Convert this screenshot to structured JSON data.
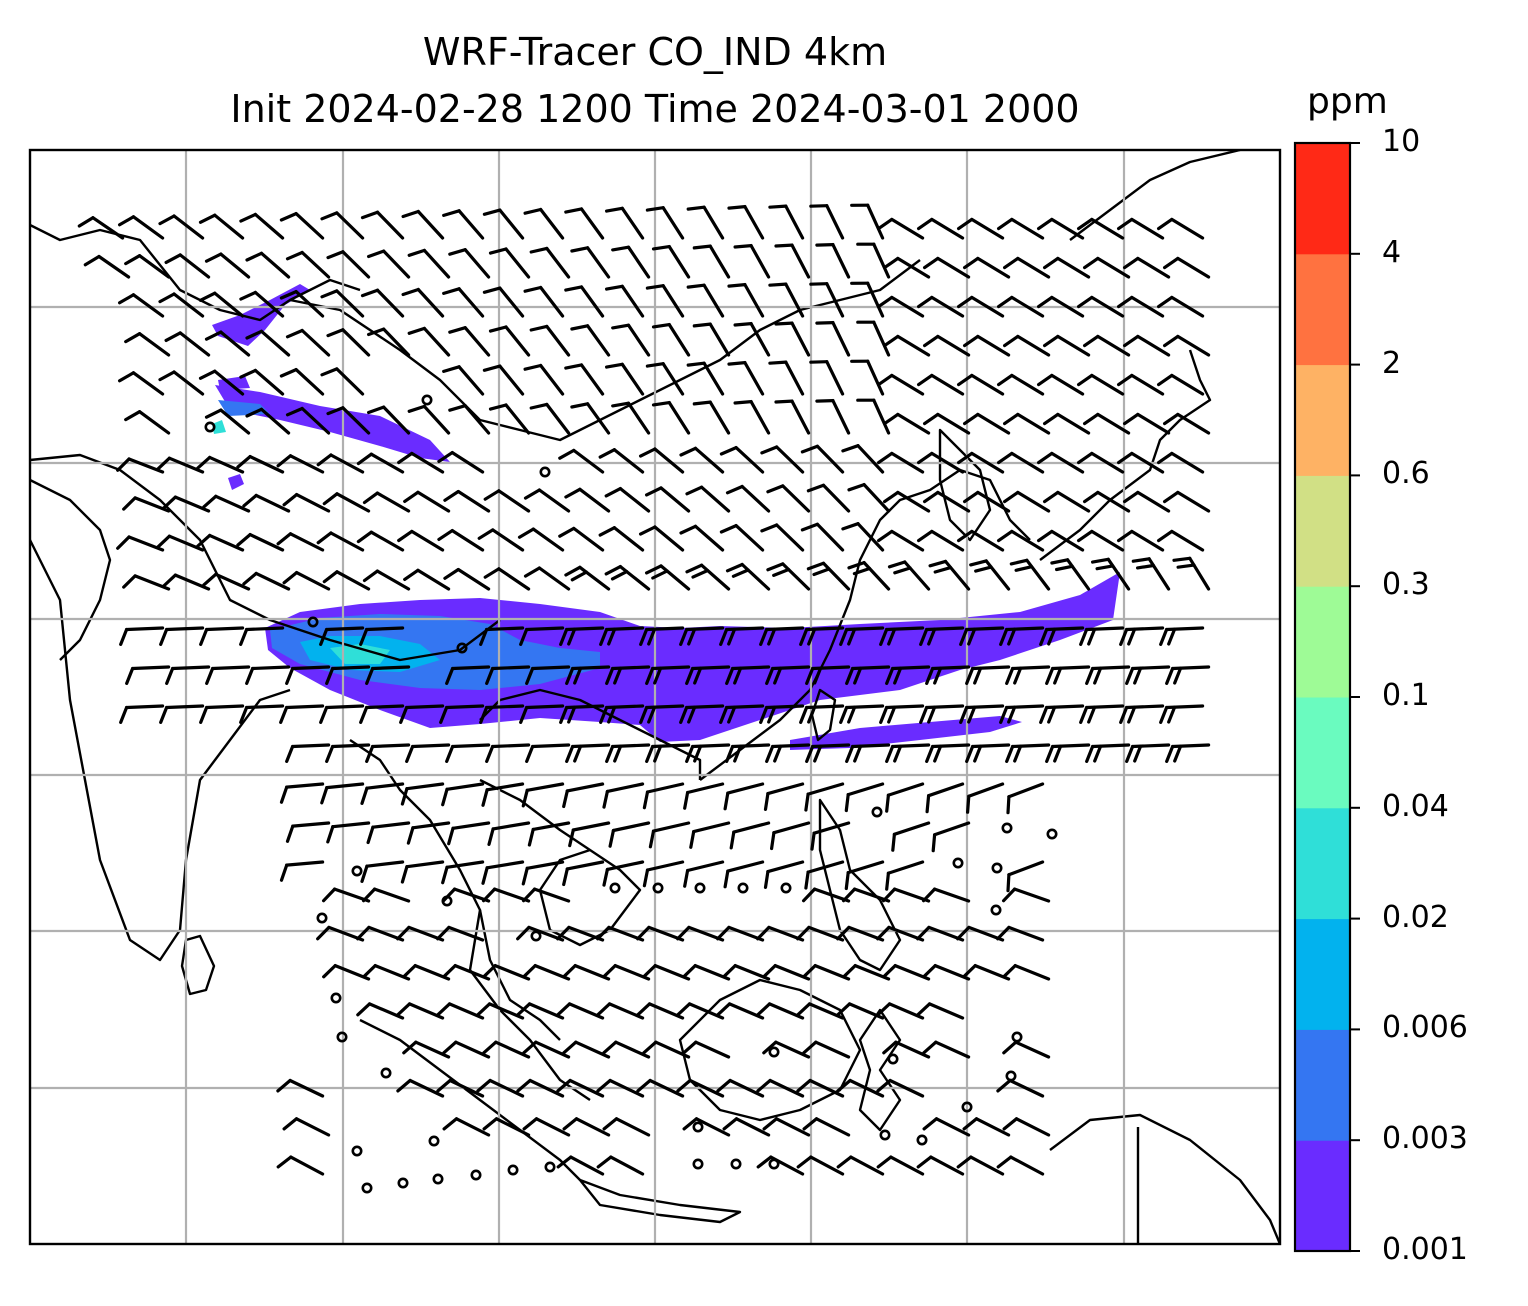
{
  "title": {
    "line1": "WRF-Tracer CO_IND 4km",
    "line2": "Init 2024-02-28 1200 Time 2024-03-01 2000"
  },
  "colorbar": {
    "unit": "ppm",
    "ticks": [
      "10",
      "4",
      "2",
      "0.6",
      "0.3",
      "0.1",
      "0.04",
      "0.02",
      "0.006",
      "0.003",
      "0.001"
    ],
    "colors": [
      "#6a2cff",
      "#3476f2",
      "#02b2ee",
      "#2fdfd8",
      "#6afbbf",
      "#9efb96",
      "#d1e085",
      "#feb264",
      "#ff7240",
      "#ff2916"
    ]
  },
  "map": {
    "gridlines": true,
    "wind_barbs": true,
    "coastlines": true,
    "tracer_color_low": "#6a2cff",
    "tracer_color_mid": "#3476f2",
    "tracer_color_high": "#2fdfd8"
  }
}
